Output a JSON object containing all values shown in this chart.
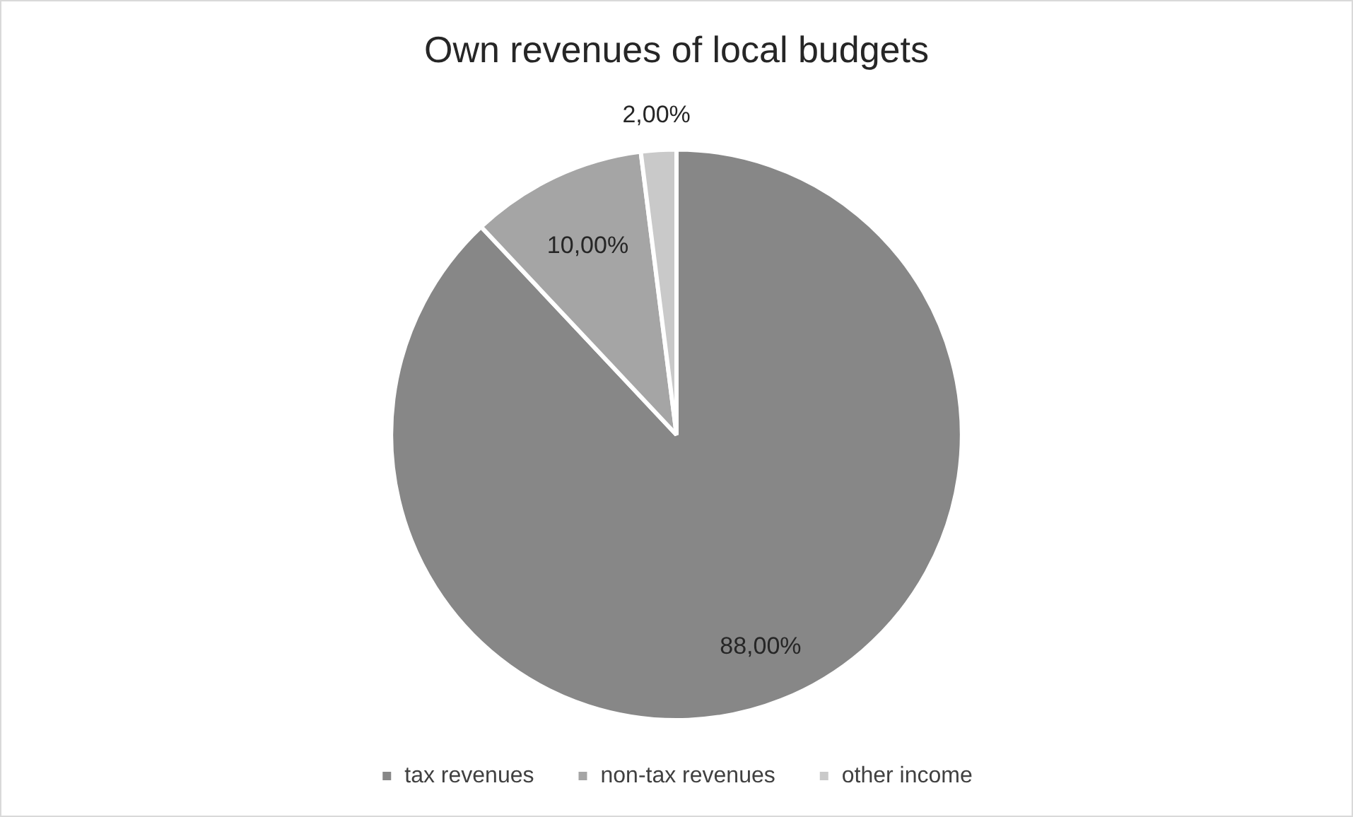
{
  "chart_data": {
    "type": "pie",
    "title": "Own revenues of local budgets",
    "categories": [
      "tax revenues",
      "non-tax revenues",
      "other income"
    ],
    "values": [
      88,
      10,
      2
    ],
    "colors": [
      "#878787",
      "#a5a5a5",
      "#c9c9c9"
    ],
    "value_labels": [
      "88,00%",
      "10,00%",
      "2,00%"
    ],
    "legend": "bottom"
  }
}
